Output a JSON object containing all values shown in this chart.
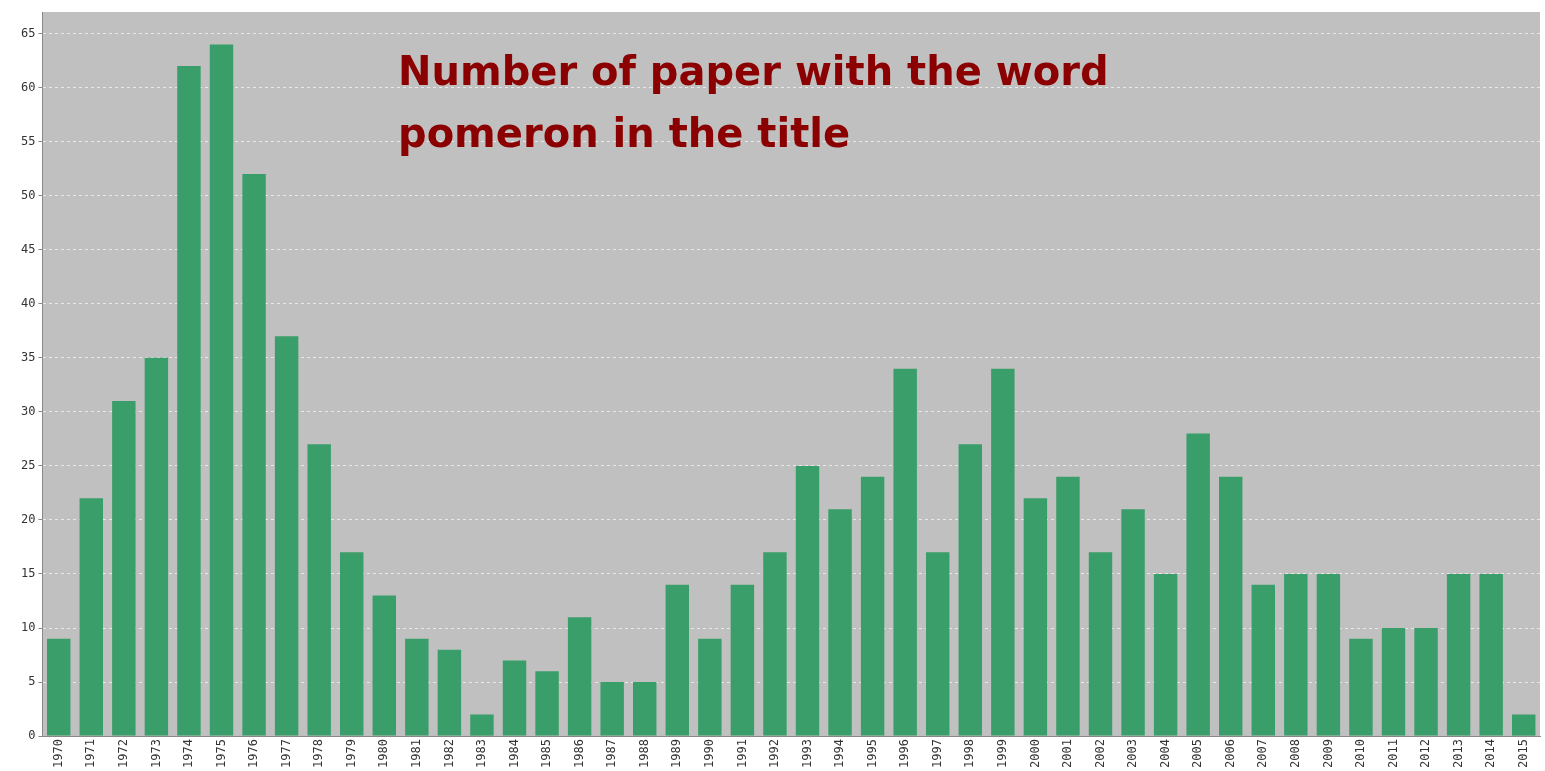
{
  "chart_data": {
    "type": "bar",
    "title": "Number of paper with the word pomeron in the title",
    "categories": [
      "1970",
      "1971",
      "1972",
      "1973",
      "1974",
      "1975",
      "1976",
      "1977",
      "1978",
      "1979",
      "1980",
      "1981",
      "1982",
      "1983",
      "1984",
      "1985",
      "1986",
      "1987",
      "1988",
      "1989",
      "1990",
      "1991",
      "1992",
      "1993",
      "1994",
      "1995",
      "1996",
      "1997",
      "1998",
      "1999",
      "2000",
      "2001",
      "2002",
      "2003",
      "2004",
      "2005",
      "2006",
      "2007",
      "2008",
      "2009",
      "2010",
      "2011",
      "2012",
      "2013",
      "2014",
      "2015"
    ],
    "values": [
      9,
      22,
      31,
      35,
      62,
      64,
      52,
      37,
      27,
      17,
      13,
      9,
      8,
      2,
      7,
      6,
      11,
      5,
      5,
      14,
      9,
      14,
      17,
      25,
      21,
      24,
      34,
      17,
      27,
      34,
      22,
      24,
      17,
      21,
      15,
      28,
      24,
      14,
      15,
      15,
      9,
      10,
      10,
      15,
      15,
      2
    ],
    "color": "#3a9e6a",
    "ylim": [
      0,
      67
    ],
    "yticks": [
      0,
      5,
      10,
      15,
      20,
      25,
      30,
      35,
      40,
      45,
      50,
      55,
      60,
      65
    ],
    "grid": "y",
    "legend": false
  }
}
